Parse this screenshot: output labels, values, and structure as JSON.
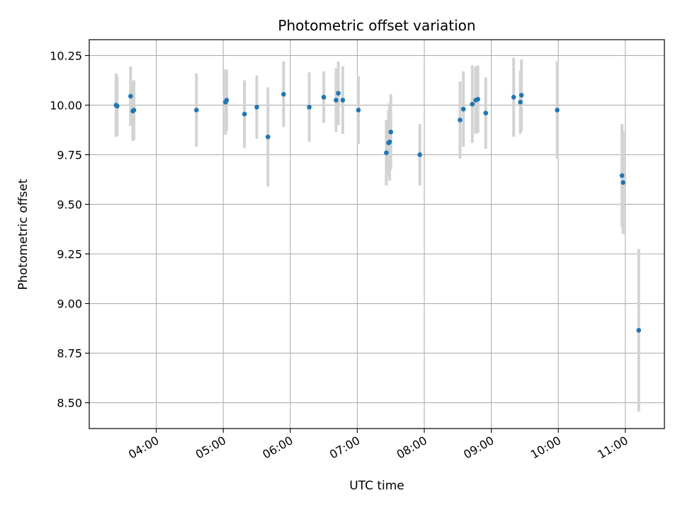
{
  "chart_data": {
    "type": "scatter",
    "title": "Photometric offset variation",
    "xlabel": "UTC time",
    "ylabel": "Photometric offset",
    "xlim": [
      "03:00",
      "11:35"
    ],
    "ylim": [
      8.37,
      10.33
    ],
    "x_ticks": [
      "04:00",
      "05:00",
      "06:00",
      "07:00",
      "08:00",
      "09:00",
      "10:00",
      "11:00"
    ],
    "y_ticks": [
      8.5,
      8.75,
      9.0,
      9.25,
      9.5,
      9.75,
      10.0,
      10.25
    ],
    "grid": true,
    "point_color": "#1f77b4",
    "errorbar_color": "#d3d3d3",
    "points": [
      {
        "x": "03:24",
        "y": 10.0,
        "err": 0.16
      },
      {
        "x": "03:25",
        "y": 9.995,
        "err": 0.15
      },
      {
        "x": "03:37",
        "y": 10.045,
        "err": 0.15
      },
      {
        "x": "03:39",
        "y": 9.97,
        "err": 0.15
      },
      {
        "x": "03:40",
        "y": 9.975,
        "err": 0.15
      },
      {
        "x": "04:36",
        "y": 9.975,
        "err": 0.185
      },
      {
        "x": "05:02",
        "y": 10.015,
        "err": 0.165
      },
      {
        "x": "05:03",
        "y": 10.025,
        "err": 0.155
      },
      {
        "x": "05:19",
        "y": 9.955,
        "err": 0.17
      },
      {
        "x": "05:30",
        "y": 9.99,
        "err": 0.16
      },
      {
        "x": "05:40",
        "y": 9.84,
        "err": 0.25
      },
      {
        "x": "05:54",
        "y": 10.055,
        "err": 0.165
      },
      {
        "x": "06:17",
        "y": 9.99,
        "err": 0.175
      },
      {
        "x": "06:30",
        "y": 10.04,
        "err": 0.13
      },
      {
        "x": "06:41",
        "y": 10.025,
        "err": 0.16
      },
      {
        "x": "06:43",
        "y": 10.06,
        "err": 0.16
      },
      {
        "x": "06:47",
        "y": 10.025,
        "err": 0.17
      },
      {
        "x": "07:01",
        "y": 9.975,
        "err": 0.17
      },
      {
        "x": "07:26",
        "y": 9.76,
        "err": 0.165
      },
      {
        "x": "07:28",
        "y": 9.81,
        "err": 0.165
      },
      {
        "x": "07:29",
        "y": 9.815,
        "err": 0.195
      },
      {
        "x": "07:30",
        "y": 9.865,
        "err": 0.19
      },
      {
        "x": "07:56",
        "y": 9.75,
        "err": 0.155
      },
      {
        "x": "08:32",
        "y": 9.925,
        "err": 0.195
      },
      {
        "x": "08:35",
        "y": 9.98,
        "err": 0.19
      },
      {
        "x": "08:43",
        "y": 10.005,
        "err": 0.195
      },
      {
        "x": "08:46",
        "y": 10.025,
        "err": 0.17
      },
      {
        "x": "08:48",
        "y": 10.03,
        "err": 0.17
      },
      {
        "x": "08:55",
        "y": 9.96,
        "err": 0.18
      },
      {
        "x": "09:20",
        "y": 10.04,
        "err": 0.2
      },
      {
        "x": "09:26",
        "y": 10.015,
        "err": 0.16
      },
      {
        "x": "09:27",
        "y": 10.05,
        "err": 0.18
      },
      {
        "x": "09:59",
        "y": 9.975,
        "err": 0.245
      },
      {
        "x": "10:57",
        "y": 9.645,
        "err": 0.26
      },
      {
        "x": "10:58",
        "y": 9.61,
        "err": 0.26
      },
      {
        "x": "11:12",
        "y": 8.865,
        "err": 0.41
      }
    ]
  }
}
